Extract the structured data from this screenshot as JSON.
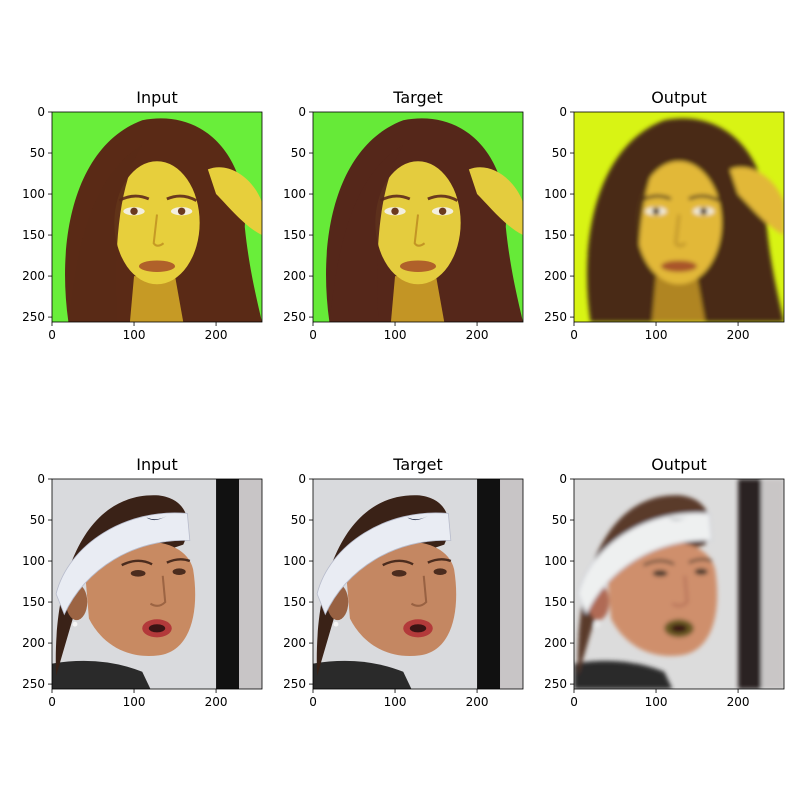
{
  "chart_data": [
    {
      "type": "image",
      "row": 0,
      "col": 0,
      "title": "Input",
      "xticks": [
        0,
        100,
        200
      ],
      "yticks": [
        0,
        50,
        100,
        150,
        200,
        250
      ],
      "xlim": [
        0,
        256
      ],
      "ylim": [
        256,
        0
      ],
      "background_color": "#69ee3a",
      "subject": "face",
      "palette": {
        "hair": "#5a2a16",
        "skin": "#e7cf3c",
        "skin_shadow": "#c69a25",
        "feature": "#6b3a1e",
        "lips": "#b0612a"
      }
    },
    {
      "type": "image",
      "row": 0,
      "col": 1,
      "title": "Target",
      "xticks": [
        0,
        100,
        200
      ],
      "yticks": [
        0,
        50,
        100,
        150,
        200,
        250
      ],
      "xlim": [
        0,
        256
      ],
      "ylim": [
        256,
        0
      ],
      "background_color": "#66ea38",
      "subject": "face",
      "palette": {
        "hair": "#55271a",
        "skin": "#e4cc3e",
        "skin_shadow": "#c39525",
        "feature": "#6b3a1e",
        "lips": "#b0612a"
      }
    },
    {
      "type": "image",
      "row": 0,
      "col": 2,
      "title": "Output",
      "xticks": [
        0,
        100,
        200
      ],
      "yticks": [
        0,
        50,
        100,
        150,
        200,
        250
      ],
      "xlim": [
        0,
        256
      ],
      "ylim": [
        256,
        0
      ],
      "background_color": "#d8f414",
      "subject": "face",
      "palette": {
        "hair": "#4a2c14",
        "skin": "#e2b837",
        "skin_shadow": "#b08522",
        "feature": "#4a3020",
        "lips": "#a9542a"
      }
    },
    {
      "type": "image",
      "row": 1,
      "col": 0,
      "title": "Input",
      "xticks": [
        0,
        100,
        200
      ],
      "yticks": [
        0,
        50,
        100,
        150,
        200,
        250
      ],
      "xlim": [
        0,
        256
      ],
      "ylim": [
        256,
        0
      ],
      "background_color": "#d9dadd",
      "subject": "athlete",
      "palette": {
        "hair": "#3a2217",
        "skin": "#c88a62",
        "skin_shadow": "#9c6443",
        "feature": "#4b2c1e",
        "lips": "#b3393a",
        "band": "#e9ecf3",
        "pole": "#111111"
      }
    },
    {
      "type": "image",
      "row": 1,
      "col": 1,
      "title": "Target",
      "xticks": [
        0,
        100,
        200
      ],
      "yticks": [
        0,
        50,
        100,
        150,
        200,
        250
      ],
      "xlim": [
        0,
        256
      ],
      "ylim": [
        256,
        0
      ],
      "background_color": "#d9dadd",
      "subject": "athlete",
      "palette": {
        "hair": "#3a2217",
        "skin": "#c48762",
        "skin_shadow": "#986142",
        "feature": "#4b2c1e",
        "lips": "#b33a3a",
        "band": "#e9ecf3",
        "pole": "#111111"
      }
    },
    {
      "type": "image",
      "row": 1,
      "col": 2,
      "title": "Output",
      "xticks": [
        0,
        100,
        200
      ],
      "yticks": [
        0,
        50,
        100,
        150,
        200,
        250
      ],
      "xlim": [
        0,
        256
      ],
      "ylim": [
        256,
        0
      ],
      "background_color": "#dcdcdc",
      "subject": "athlete",
      "palette": {
        "hair": "#5a3a2a",
        "skin": "#cf8f6c",
        "skin_shadow": "#b06a55",
        "feature": "#4b3a2e",
        "lips": "#6b5a22",
        "band": "#eef0f0",
        "pole": "#2a2424"
      }
    }
  ]
}
